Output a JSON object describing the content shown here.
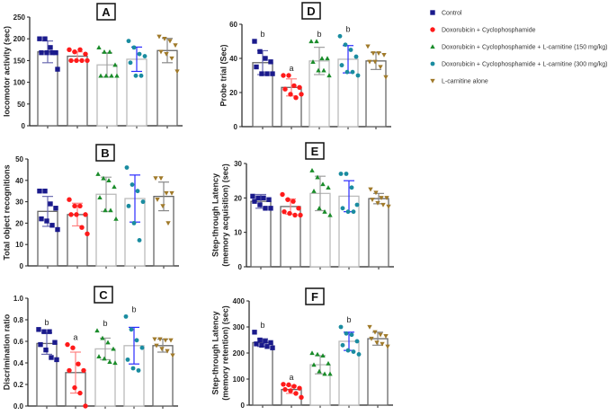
{
  "legend": [
    {
      "label": "Control",
      "color": "#1a1a8c",
      "marker": "square"
    },
    {
      "label": "Doxorubicin + Cyclophosphamide",
      "color": "#ff1a1a",
      "marker": "circle"
    },
    {
      "label": "Doxorubicin + Cyclophosphamide + L-carnitine (150 mg/kg)",
      "color": "#1a8c2a",
      "marker": "triangle-up"
    },
    {
      "label": "Doxorubicin + Cyclophosphamide + L-carnitine (300 mg/kg)",
      "color": "#1a8ca0",
      "marker": "hexagon"
    },
    {
      "label": "L-carnitine alone",
      "color": "#a07a2a",
      "marker": "triangle-down"
    }
  ],
  "chart_data": [
    {
      "type": "bar",
      "panel": "A",
      "ylabel": [
        "locomotor activity (sec)"
      ],
      "ylim": [
        0,
        250
      ],
      "yticks": [
        "0",
        "50",
        "100",
        "150",
        "200",
        "250"
      ],
      "means": [
        170,
        160,
        140,
        153,
        173
      ],
      "sd": [
        25,
        10,
        28,
        28,
        28
      ],
      "letters": [
        "",
        "",
        "",
        "",
        ""
      ],
      "points": [
        [
          200,
          200,
          180,
          168,
          168,
          168,
          168,
          130
        ],
        [
          175,
          170,
          175,
          165,
          150,
          150,
          150,
          150
        ],
        [
          180,
          170,
          170,
          140,
          115,
          115,
          115,
          115
        ],
        [
          195,
          180,
          165,
          160,
          145,
          115,
          115
        ],
        [
          205,
          200,
          195,
          185,
          170,
          165,
          155,
          125
        ]
      ]
    },
    {
      "type": "bar",
      "panel": "B",
      "ylabel": [
        "Total object recognitions"
      ],
      "ylim": [
        0,
        50
      ],
      "yticks": [
        "0",
        "10",
        "20",
        "30",
        "40",
        "50"
      ],
      "means": [
        25.5,
        24,
        33.5,
        31.5,
        32.5
      ],
      "sd": [
        7,
        5.3,
        8,
        11,
        6.7
      ],
      "letters": [
        "",
        "",
        "",
        "",
        ""
      ],
      "points": [
        [
          35,
          35,
          29,
          27,
          22,
          21,
          19,
          17
        ],
        [
          31,
          28,
          28,
          24,
          24,
          24,
          18,
          15
        ],
        [
          43,
          41,
          40,
          37,
          32,
          26,
          26,
          22
        ],
        [
          46,
          38,
          35,
          30,
          28,
          20,
          12
        ],
        [
          41,
          41,
          34,
          34,
          31,
          28,
          20
        ]
      ]
    },
    {
      "type": "bar",
      "panel": "C",
      "ylabel": [
        "Discrimination ratio"
      ],
      "ylim": [
        0,
        1
      ],
      "yticks": [
        "0.0",
        "0.2",
        "0.4",
        "0.6",
        "0.8",
        "1.0"
      ],
      "means": [
        0.58,
        0.31,
        0.53,
        0.56,
        0.56
      ],
      "sd": [
        0.1,
        0.19,
        0.1,
        0.17,
        0.06
      ],
      "letters": [
        "b",
        "a",
        "b",
        "b",
        ""
      ],
      "points": [
        [
          0.71,
          0.69,
          0.69,
          0.59,
          0.57,
          0.52,
          0.45,
          0.43
        ],
        [
          0.57,
          0.54,
          0.39,
          0.33,
          0.33,
          0.17,
          0.12,
          0.0
        ],
        [
          0.7,
          0.63,
          0.59,
          0.53,
          0.46,
          0.44,
          0.41,
          0.4
        ],
        [
          0.83,
          0.71,
          0.61,
          0.54,
          0.43,
          0.35,
          0.33
        ],
        [
          0.62,
          0.62,
          0.61,
          0.61,
          0.56,
          0.53,
          0.51,
          0.47
        ]
      ]
    },
    {
      "type": "bar",
      "panel": "D",
      "ylabel": [
        "Probe trial  (Sec)"
      ],
      "ylim": [
        0,
        60
      ],
      "yticks": [
        "0",
        "20",
        "40",
        "60"
      ],
      "means": [
        37.5,
        23,
        38.5,
        39.5,
        38.5
      ],
      "sd": [
        7,
        5,
        8,
        8,
        5
      ],
      "letters": [
        "b",
        "a",
        "b",
        "b",
        ""
      ],
      "points": [
        [
          50,
          44,
          40,
          38,
          35,
          31,
          31,
          31
        ],
        [
          30,
          30,
          24,
          23,
          22,
          19,
          17,
          19
        ],
        [
          50,
          50,
          40,
          40,
          38,
          33,
          33,
          30
        ],
        [
          53,
          48,
          45,
          41,
          36,
          32,
          32,
          30
        ],
        [
          47,
          43,
          43,
          42,
          38,
          38,
          35,
          29
        ]
      ]
    },
    {
      "type": "bar",
      "panel": "E",
      "ylabel": [
        "Step-through Latency",
        "(memory acquisition) (sec)"
      ],
      "ylim": [
        0,
        30
      ],
      "yticks": [
        "0",
        "10",
        "20",
        "30"
      ],
      "means": [
        19,
        17.5,
        21.3,
        20.5,
        19.8
      ],
      "sd": [
        2,
        2.2,
        5,
        4.5,
        1.5
      ],
      "letters": [
        "",
        "",
        "",
        "",
        ""
      ],
      "points": [
        [
          20.5,
          20,
          20,
          19.5,
          19,
          18,
          17,
          17
        ],
        [
          21,
          19.5,
          19,
          17,
          16,
          15.5,
          15,
          15
        ],
        [
          28,
          26,
          24,
          23,
          22,
          17,
          16,
          15
        ],
        [
          27,
          27,
          23,
          18,
          17,
          16,
          16
        ],
        [
          22.5,
          21.5,
          20,
          20,
          19.5,
          18.5,
          18,
          17.5
        ]
      ]
    },
    {
      "type": "bar",
      "panel": "F",
      "ylabel": [
        "Step-through Latency",
        "(memory retention) (sec)"
      ],
      "ylim": [
        0,
        400
      ],
      "yticks": [
        "0",
        "100",
        "200",
        "300",
        "400"
      ],
      "means": [
        240,
        60,
        155,
        245,
        255
      ],
      "sd": [
        15,
        15,
        35,
        35,
        25
      ],
      "letters": [
        "b",
        "a",
        "",
        "b",
        ""
      ],
      "points": [
        [
          280,
          250,
          245,
          240,
          235,
          230,
          225,
          220
        ],
        [
          80,
          78,
          72,
          65,
          60,
          55,
          45,
          30
        ],
        [
          200,
          195,
          190,
          160,
          155,
          130,
          120,
          120
        ],
        [
          300,
          275,
          270,
          245,
          230,
          210,
          205,
          195
        ],
        [
          300,
          280,
          270,
          265,
          255,
          240,
          235,
          225
        ]
      ]
    }
  ]
}
